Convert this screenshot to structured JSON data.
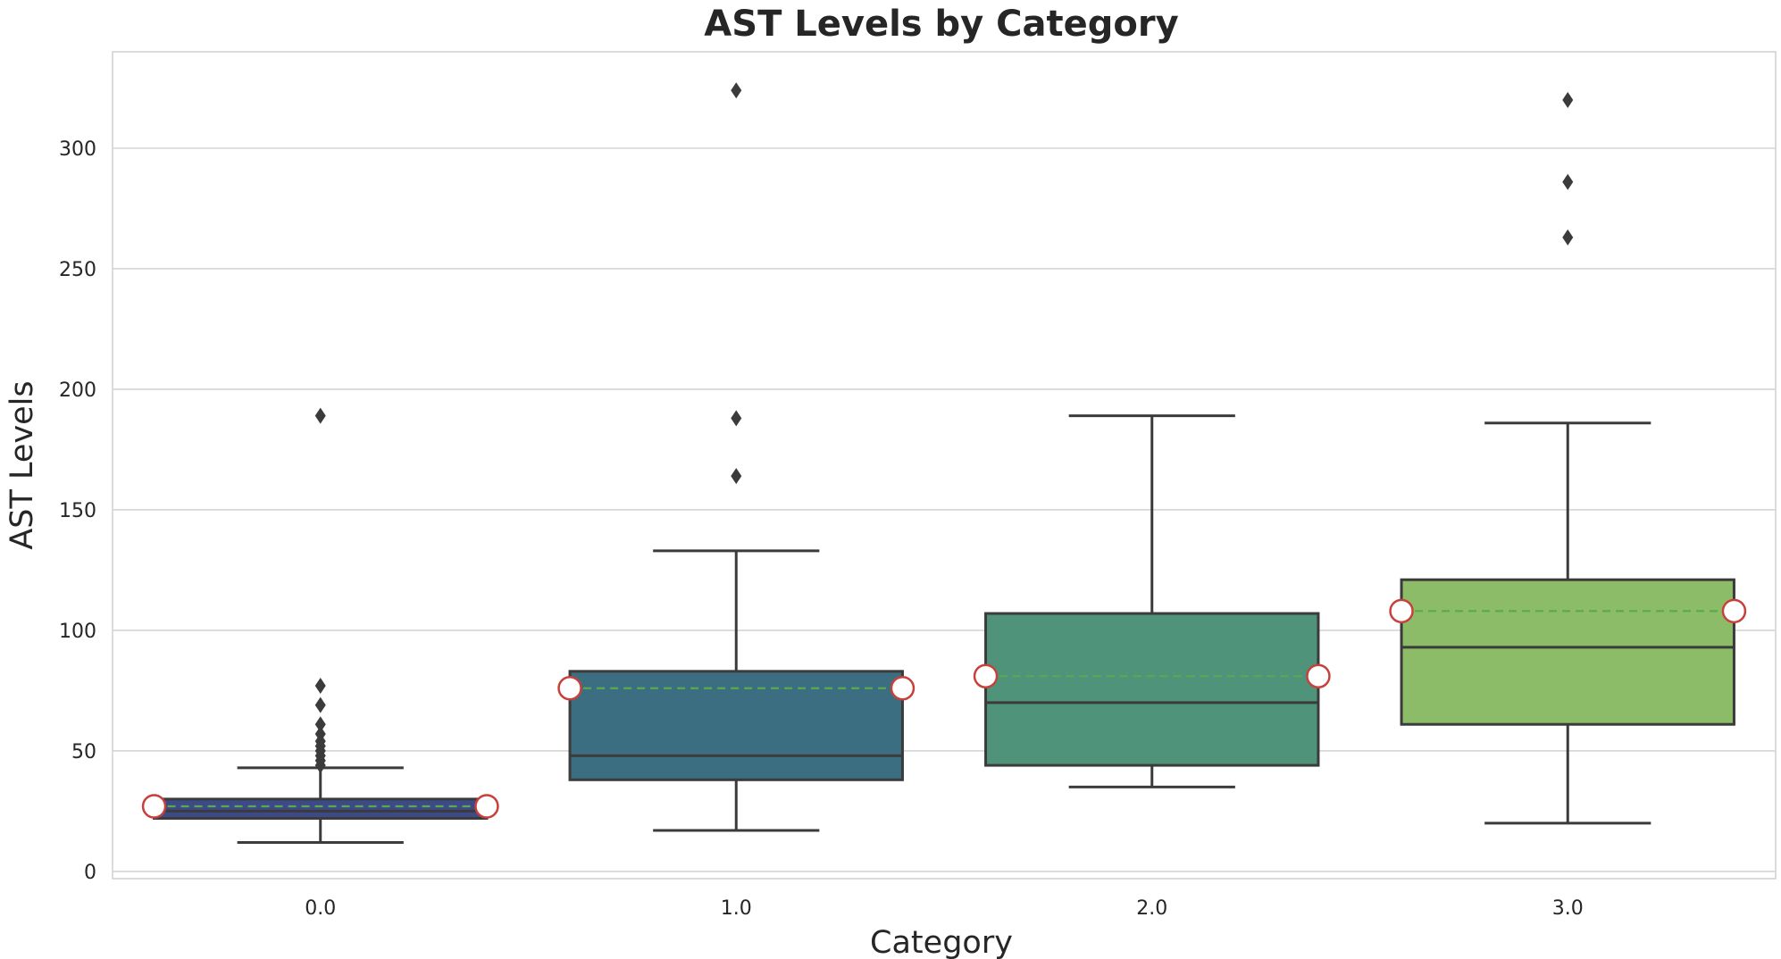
{
  "chart_data": {
    "type": "box",
    "title": "AST Levels by Category",
    "xlabel": "Category",
    "ylabel": "AST Levels",
    "ylim": [
      -3,
      340
    ],
    "yticks": [
      0,
      50,
      100,
      150,
      200,
      250,
      300
    ],
    "grid": true,
    "legend": "none",
    "categories": [
      "0.0",
      "1.0",
      "2.0",
      "3.0"
    ],
    "boxes": [
      {
        "category": "0.0",
        "whisker_low": 12,
        "q1": 22,
        "median": 25,
        "q3": 30,
        "whisker_high": 43,
        "mean": 27,
        "color": "#3c4a87",
        "outliers": [
          44,
          46,
          48,
          50,
          52,
          54,
          57,
          61,
          69,
          77,
          189
        ]
      },
      {
        "category": "1.0",
        "whisker_low": 17,
        "q1": 38,
        "median": 48,
        "q3": 83,
        "whisker_high": 133,
        "mean": 76,
        "color": "#3c6e81",
        "outliers": [
          164,
          188,
          324
        ]
      },
      {
        "category": "2.0",
        "whisker_low": 35,
        "q1": 44,
        "median": 70,
        "q3": 107,
        "whisker_high": 189,
        "mean": 81,
        "color": "#4f937a",
        "outliers": []
      },
      {
        "category": "3.0",
        "whisker_low": 20,
        "q1": 61,
        "median": 93,
        "q3": 121,
        "whisker_high": 186,
        "mean": 108,
        "color": "#8cbc67",
        "outliers": [
          263,
          286,
          320
        ]
      }
    ],
    "colors": {
      "line": "#3b3b3b",
      "grid": "#d5d5d5",
      "mean_line": "#5aa94e",
      "mean_marker_edge": "#c7413a",
      "mean_marker_fill": "#ffffff"
    }
  }
}
